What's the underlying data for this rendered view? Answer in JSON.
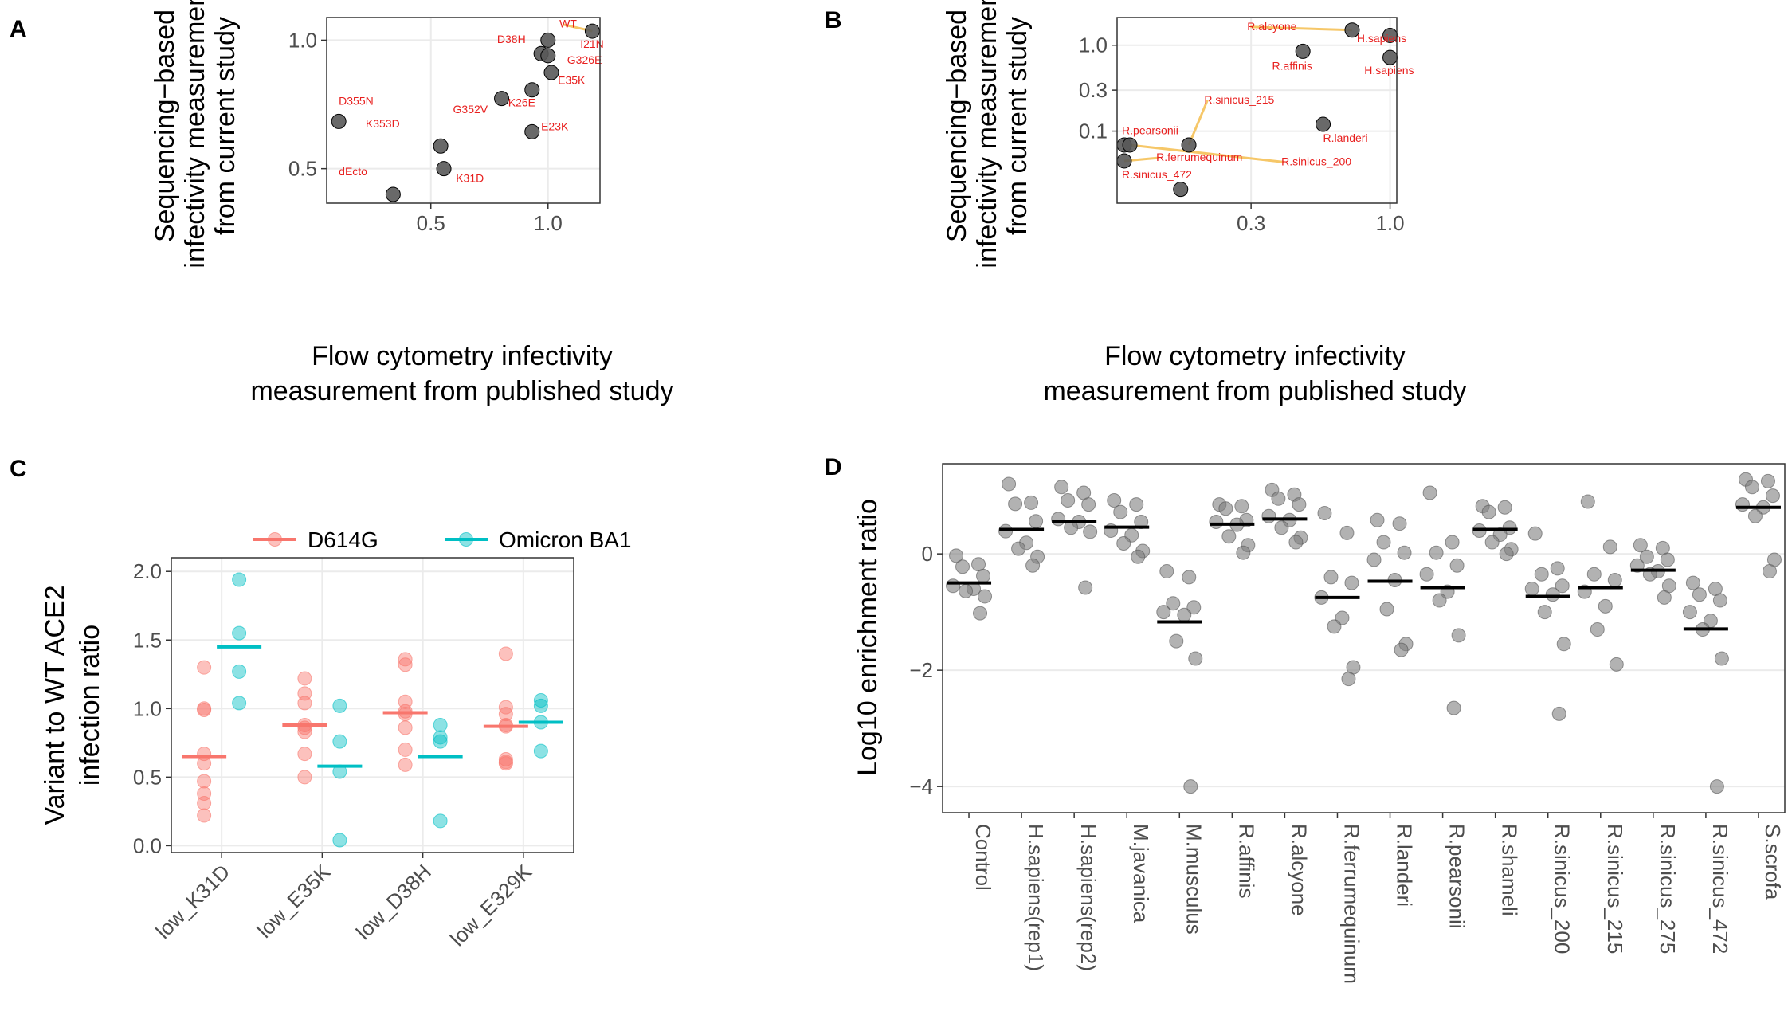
{
  "chart_data": [
    {
      "panel": "A",
      "type": "scatter",
      "xlabel": [
        "Flow cytometry infectivity",
        "measurement from published study"
      ],
      "ylabel": [
        "Sequencing−based",
        "infectivity measurement",
        "from current study"
      ],
      "scale": "log",
      "xticks": [
        {
          "v": 0.5,
          "label": "0.5"
        },
        {
          "v": 1.0,
          "label": "1.0"
        }
      ],
      "yticks": [
        {
          "v": 0.5,
          "label": "0.5"
        },
        {
          "v": 1.0,
          "label": "1.0"
        }
      ],
      "xlim": [
        0.27,
        1.36
      ],
      "ylim": [
        0.415,
        1.13
      ],
      "points": [
        {
          "x": 1.3,
          "y": 1.05
        },
        {
          "x": 1.0,
          "y": 1.0
        },
        {
          "x": 0.96,
          "y": 0.93
        },
        {
          "x": 1.0,
          "y": 0.92
        },
        {
          "x": 1.02,
          "y": 0.84
        },
        {
          "x": 0.91,
          "y": 0.765
        },
        {
          "x": 0.76,
          "y": 0.73
        },
        {
          "x": 0.29,
          "y": 0.645
        },
        {
          "x": 0.91,
          "y": 0.61
        },
        {
          "x": 0.53,
          "y": 0.565
        },
        {
          "x": 0.54,
          "y": 0.5
        },
        {
          "x": 0.4,
          "y": 0.435
        }
      ],
      "labels": [
        {
          "text": "WT",
          "x": 1.07,
          "y": 1.07,
          "px": 1.3,
          "py": 1.05
        },
        {
          "text": "I21N",
          "x": 1.21,
          "y": 0.96
        },
        {
          "text": "D38H",
          "x": 0.74,
          "y": 0.985
        },
        {
          "text": "G326E",
          "x": 1.12,
          "y": 0.88
        },
        {
          "text": "E35K",
          "x": 1.06,
          "y": 0.79
        },
        {
          "text": "K26E",
          "x": 0.79,
          "y": 0.7
        },
        {
          "text": "D355N",
          "x": 0.29,
          "y": 0.705
        },
        {
          "text": "G352V",
          "x": 0.57,
          "y": 0.675
        },
        {
          "text": "K353D",
          "x": 0.34,
          "y": 0.625
        },
        {
          "text": "E23K",
          "x": 0.96,
          "y": 0.615
        },
        {
          "text": "dEcto",
          "x": 0.29,
          "y": 0.482
        },
        {
          "text": "K31D",
          "x": 0.58,
          "y": 0.465
        }
      ]
    },
    {
      "panel": "B",
      "type": "scatter",
      "xlabel": [
        "Flow cytometry infectivity",
        "measurement from published study"
      ],
      "ylabel": [
        "Sequencing−based",
        "infectivity measurement",
        "from current study"
      ],
      "scale": "log",
      "xticks": [
        {
          "v": 0.3,
          "label": "0.3"
        },
        {
          "v": 1.0,
          "label": "1.0"
        }
      ],
      "yticks": [
        {
          "v": 0.1,
          "label": "0.1"
        },
        {
          "v": 0.3,
          "label": "0.3"
        },
        {
          "v": 1.0,
          "label": "1.0"
        }
      ],
      "xlim": [
        0.094,
        1.06
      ],
      "ylim": [
        0.0145,
        2.1
      ],
      "points": [
        {
          "x": 0.72,
          "y": 1.5
        },
        {
          "x": 1.0,
          "y": 1.3
        },
        {
          "x": 0.47,
          "y": 0.85
        },
        {
          "x": 1.0,
          "y": 0.72
        },
        {
          "x": 0.56,
          "y": 0.12
        },
        {
          "x": 0.1,
          "y": 0.069
        },
        {
          "x": 0.105,
          "y": 0.069
        },
        {
          "x": 0.175,
          "y": 0.069
        },
        {
          "x": 0.1,
          "y": 0.045
        },
        {
          "x": 0.163,
          "y": 0.021
        }
      ],
      "labels": [
        {
          "text": "R.alcyone",
          "x": 0.29,
          "y": 1.5,
          "px": 0.72,
          "py": 1.5
        },
        {
          "text": "H.sapiens",
          "x": 0.75,
          "y": 1.08
        },
        {
          "text": "R.affinis",
          "x": 0.36,
          "y": 0.52
        },
        {
          "text": "H.sapiens",
          "x": 0.8,
          "y": 0.46
        },
        {
          "text": "R.sinicus_215",
          "x": 0.2,
          "y": 0.21,
          "px": 0.175,
          "py": 0.069
        },
        {
          "text": "R.pearsonii",
          "x": 0.098,
          "y": 0.092
        },
        {
          "text": "R.landeri",
          "x": 0.56,
          "y": 0.075
        },
        {
          "text": "R.ferrumequinum",
          "x": 0.132,
          "y": 0.045,
          "px": 0.1,
          "py": 0.045
        },
        {
          "text": "R.sinicus_200",
          "x": 0.39,
          "y": 0.04,
          "px": 0.105,
          "py": 0.069
        },
        {
          "text": "R.sinicus_472",
          "x": 0.098,
          "y": 0.028
        }
      ]
    },
    {
      "panel": "C",
      "type": "scatter",
      "ylabel": [
        "Variant to WT ACE2",
        "infection ratio"
      ],
      "ylim": [
        -0.05,
        2.1
      ],
      "yticks": [
        0.0,
        0.5,
        1.0,
        1.5,
        2.0
      ],
      "ytick_labels": [
        "0.0",
        "0.5",
        "1.0",
        "1.5",
        "2.0"
      ],
      "categories": [
        "low_K31D",
        "low_E35K",
        "low_D38H",
        "low_E329K"
      ],
      "legend": {
        "position": "top"
      },
      "series": [
        {
          "name": "D614G",
          "color": "#F8766D",
          "means": [
            0.65,
            0.88,
            0.97,
            0.87
          ],
          "values": [
            [
              1.3,
              1.0,
              0.99,
              0.67,
              0.6,
              0.47,
              0.38,
              0.31,
              0.22
            ],
            [
              1.22,
              1.11,
              1.04,
              0.88,
              0.86,
              0.83,
              0.67,
              0.5
            ],
            [
              1.36,
              1.32,
              1.05,
              0.98,
              0.96,
              0.86,
              0.7,
              0.59
            ],
            [
              1.4,
              1.01,
              0.96,
              0.88,
              0.87,
              0.63,
              0.61,
              0.6
            ]
          ]
        },
        {
          "name": "Omicron BA1",
          "color": "#00BFC4",
          "means": [
            1.45,
            0.58,
            0.65,
            0.9
          ],
          "values": [
            [
              1.94,
              1.55,
              1.27,
              1.04
            ],
            [
              1.02,
              0.76,
              0.54,
              0.04
            ],
            [
              0.88,
              0.79,
              0.76,
              0.18
            ],
            [
              1.06,
              1.02,
              0.9,
              0.69
            ]
          ]
        }
      ]
    },
    {
      "panel": "D",
      "type": "scatter",
      "ylabel": "Log10 enrichment ratio",
      "ylim": [
        -4.45,
        1.55
      ],
      "yticks": [
        0,
        -2,
        -4
      ],
      "ytick_labels": [
        "0",
        "−2",
        "−4"
      ],
      "categories": [
        "Control",
        "H.sapiens(rep1)",
        "H.sapiens(rep2)",
        "M.javanica",
        "M.musculus",
        "R.affinis",
        "R.alcyone",
        "R.ferrumequinum",
        "R.landeri",
        "R.pearsonii",
        "R.shameli",
        "R.sinicus_200",
        "R.sinicus_215",
        "R.sinicus_275",
        "R.sinicus_472",
        "S.scrofa"
      ],
      "point_color": "#7f7f7f",
      "means": [
        -0.5,
        0.42,
        0.55,
        0.46,
        -1.17,
        0.51,
        0.6,
        -0.75,
        -0.47,
        -0.58,
        0.42,
        -0.73,
        -0.58,
        -0.28,
        -1.29,
        0.8
      ],
      "values": [
        [
          -0.03,
          -0.18,
          -0.22,
          -0.38,
          -0.55,
          -0.6,
          -0.64,
          -0.73,
          -1.02
        ],
        [
          1.2,
          0.88,
          0.86,
          0.56,
          0.39,
          0.19,
          0.09,
          -0.05,
          -0.2
        ],
        [
          1.15,
          1.05,
          0.92,
          0.85,
          0.6,
          0.55,
          0.45,
          0.38,
          -0.58
        ],
        [
          0.92,
          0.85,
          0.72,
          0.55,
          0.4,
          0.32,
          0.18,
          0.05,
          -0.05
        ],
        [
          -0.3,
          -0.4,
          -0.85,
          -0.92,
          -1.0,
          -1.05,
          -1.5,
          -1.8,
          -4.0
        ],
        [
          0.85,
          0.82,
          0.78,
          0.58,
          0.55,
          0.5,
          0.3,
          0.15,
          0.02
        ],
        [
          1.1,
          1.02,
          0.95,
          0.85,
          0.65,
          0.58,
          0.45,
          0.28,
          0.2
        ],
        [
          0.7,
          0.36,
          -0.4,
          -0.5,
          -0.75,
          -1.1,
          -1.25,
          -1.95,
          -2.15
        ],
        [
          0.58,
          0.52,
          0.2,
          0.02,
          -0.1,
          -0.45,
          -0.95,
          -1.55,
          -1.65
        ],
        [
          1.05,
          0.2,
          0.02,
          -0.2,
          -0.35,
          -0.65,
          -0.8,
          -1.4,
          -2.65
        ],
        [
          0.82,
          0.8,
          0.72,
          0.45,
          0.4,
          0.33,
          0.2,
          0.08,
          0.0
        ],
        [
          0.35,
          -0.25,
          -0.35,
          -0.55,
          -0.6,
          -0.7,
          -1.0,
          -1.55,
          -2.75
        ],
        [
          0.9,
          0.12,
          -0.35,
          -0.45,
          -0.65,
          -0.9,
          -1.3,
          -1.9
        ],
        [
          0.15,
          0.1,
          -0.05,
          -0.1,
          -0.2,
          -0.3,
          -0.35,
          -0.55,
          -0.75
        ],
        [
          -0.5,
          -0.6,
          -0.7,
          -0.8,
          -1.0,
          -1.15,
          -1.3,
          -1.8,
          -4.0
        ],
        [
          1.28,
          1.25,
          1.15,
          1.0,
          0.85,
          0.8,
          0.65,
          -0.1,
          -0.3
        ]
      ]
    }
  ],
  "panel_letters": [
    "A",
    "B",
    "C",
    "D"
  ]
}
